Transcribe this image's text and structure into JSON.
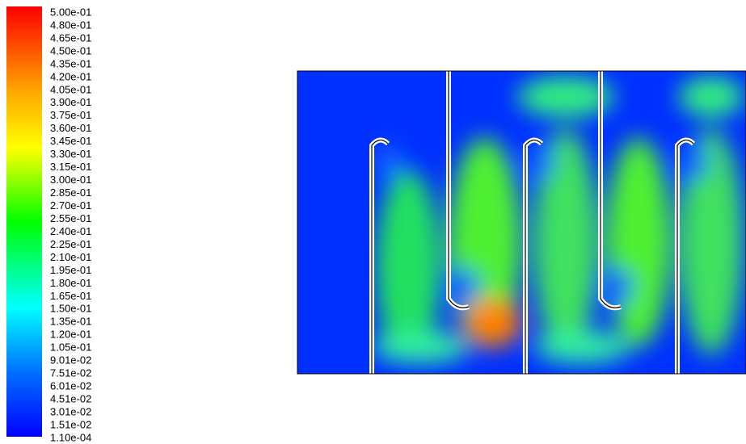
{
  "colorbar": {
    "labels": [
      "5.00e-01",
      "4.80e-01",
      "4.65e-01",
      "4.50e-01",
      "4.35e-01",
      "4.20e-01",
      "4.05e-01",
      "3.90e-01",
      "3.75e-01",
      "3.60e-01",
      "3.45e-01",
      "3.30e-01",
      "3.15e-01",
      "3.00e-01",
      "2.85e-01",
      "2.70e-01",
      "2.55e-01",
      "2.40e-01",
      "2.25e-01",
      "2.10e-01",
      "1.95e-01",
      "1.80e-01",
      "1.65e-01",
      "1.50e-01",
      "1.35e-01",
      "1.20e-01",
      "1.05e-01",
      "9.01e-02",
      "7.51e-02",
      "6.01e-02",
      "4.51e-02",
      "3.01e-02",
      "1.51e-02",
      "1.10e-04"
    ]
  }
}
